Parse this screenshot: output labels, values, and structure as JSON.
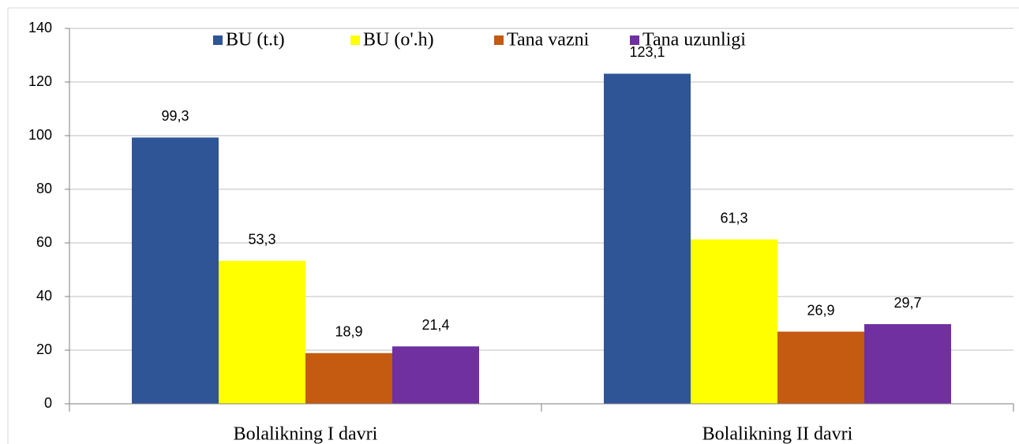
{
  "chart_data": {
    "type": "bar",
    "categories": [
      "Bolalikning I davri",
      "Bolalikning II davri"
    ],
    "series": [
      {
        "name": "BU (t.t)",
        "color": "#2f5597",
        "values": [
          99.3,
          123.1
        ],
        "value_labels": [
          "99,3",
          "123,1"
        ]
      },
      {
        "name": "BU (o'.h)",
        "color": "#ffff00",
        "values": [
          53.3,
          61.3
        ],
        "value_labels": [
          "53,3",
          "61,3"
        ]
      },
      {
        "name": "Tana vazni",
        "color": "#c55a11",
        "values": [
          18.9,
          26.9
        ],
        "value_labels": [
          "18,9",
          "26,9"
        ]
      },
      {
        "name": "Tana uzunligi",
        "color": "#7030a0",
        "values": [
          21.4,
          29.7
        ],
        "value_labels": [
          "21,4",
          "29,7"
        ]
      }
    ],
    "ylim": [
      0,
      140
    ],
    "yticks": [
      0,
      20,
      40,
      60,
      80,
      100,
      120,
      140
    ],
    "grid": true,
    "legend": "top"
  }
}
